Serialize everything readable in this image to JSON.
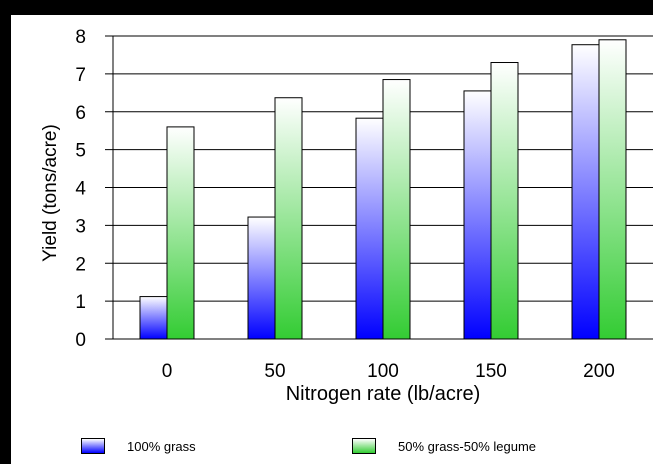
{
  "chart_data": {
    "type": "bar",
    "categories": [
      "0",
      "50",
      "100",
      "150",
      "200"
    ],
    "series": [
      {
        "name": "100% grass",
        "values": [
          1.12,
          3.22,
          5.83,
          6.55,
          7.77
        ],
        "color_top": "#ffffff",
        "color_bottom": "#0000ff"
      },
      {
        "name": "50% grass-50% legume",
        "values": [
          5.6,
          6.37,
          6.85,
          7.3,
          7.9
        ],
        "color_top": "#ffffff",
        "color_bottom": "#33cc33"
      }
    ],
    "title": "",
    "xlabel": "Nitrogen rate (lb/acre)",
    "ylabel": "Yield (tons/acre)",
    "ylim": [
      0,
      8
    ],
    "yticks": [
      "0",
      "1",
      "2",
      "3",
      "4",
      "5",
      "6",
      "7",
      "8"
    ],
    "grid": true,
    "legend_position": "bottom"
  }
}
